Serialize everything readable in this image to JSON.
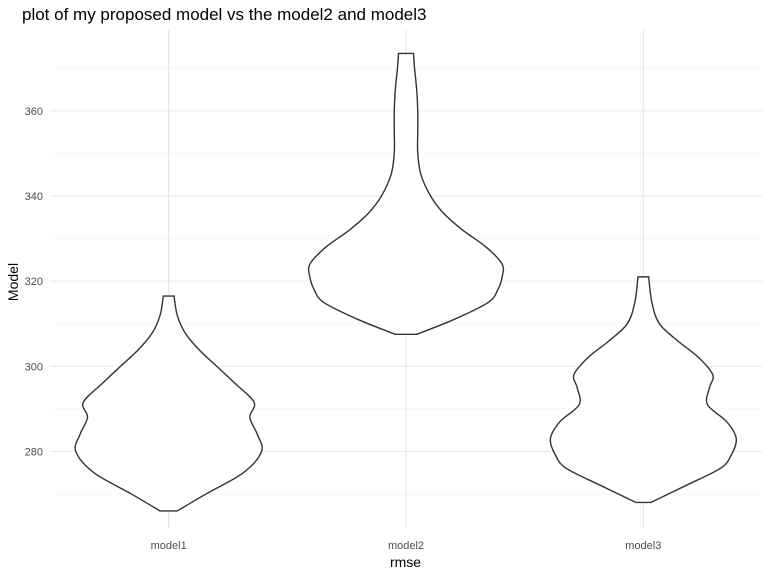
{
  "chart_data": {
    "type": "violin",
    "title": "plot of my proposed model vs the model2 and model3",
    "xlabel": "rmse",
    "ylabel": "Model",
    "categories": [
      "model1",
      "model2",
      "model3"
    ],
    "ylim": [
      262,
      379
    ],
    "y_ticks": [
      280,
      300,
      320,
      340,
      360
    ],
    "y_tick_labels": [
      "280",
      "300",
      "320",
      "340",
      "360"
    ],
    "grid": true,
    "violins": [
      {
        "category": "model1",
        "range": [
          266,
          316.5
        ],
        "profile": [
          {
            "y": 266,
            "w": 0.08
          },
          {
            "y": 270,
            "w": 0.35
          },
          {
            "y": 275,
            "w": 0.7
          },
          {
            "y": 280,
            "w": 0.87
          },
          {
            "y": 284,
            "w": 0.83
          },
          {
            "y": 288,
            "w": 0.76
          },
          {
            "y": 291.5,
            "w": 0.8
          },
          {
            "y": 296,
            "w": 0.62
          },
          {
            "y": 300,
            "w": 0.45
          },
          {
            "y": 304,
            "w": 0.28
          },
          {
            "y": 308,
            "w": 0.15
          },
          {
            "y": 312,
            "w": 0.08
          },
          {
            "y": 316.5,
            "w": 0.05
          }
        ]
      },
      {
        "category": "model2",
        "range": [
          307.5,
          373.5
        ],
        "profile": [
          {
            "y": 307.5,
            "w": 0.1
          },
          {
            "y": 311,
            "w": 0.45
          },
          {
            "y": 315,
            "w": 0.77
          },
          {
            "y": 318,
            "w": 0.86
          },
          {
            "y": 321,
            "w": 0.9
          },
          {
            "y": 324,
            "w": 0.9
          },
          {
            "y": 328,
            "w": 0.75
          },
          {
            "y": 332,
            "w": 0.53
          },
          {
            "y": 336,
            "w": 0.35
          },
          {
            "y": 340,
            "w": 0.23
          },
          {
            "y": 345,
            "w": 0.14
          },
          {
            "y": 350,
            "w": 0.11
          },
          {
            "y": 355,
            "w": 0.11
          },
          {
            "y": 360,
            "w": 0.11
          },
          {
            "y": 365,
            "w": 0.1
          },
          {
            "y": 370,
            "w": 0.08
          },
          {
            "y": 373.5,
            "w": 0.07
          }
        ]
      },
      {
        "category": "model3",
        "range": [
          268,
          321
        ],
        "profile": [
          {
            "y": 268,
            "w": 0.07
          },
          {
            "y": 272,
            "w": 0.4
          },
          {
            "y": 276,
            "w": 0.72
          },
          {
            "y": 279,
            "w": 0.82
          },
          {
            "y": 283,
            "w": 0.87
          },
          {
            "y": 287,
            "w": 0.78
          },
          {
            "y": 291,
            "w": 0.6
          },
          {
            "y": 295,
            "w": 0.62
          },
          {
            "y": 298,
            "w": 0.65
          },
          {
            "y": 302,
            "w": 0.52
          },
          {
            "y": 306,
            "w": 0.32
          },
          {
            "y": 310,
            "w": 0.15
          },
          {
            "y": 315,
            "w": 0.08
          },
          {
            "y": 321,
            "w": 0.05
          }
        ]
      }
    ]
  }
}
